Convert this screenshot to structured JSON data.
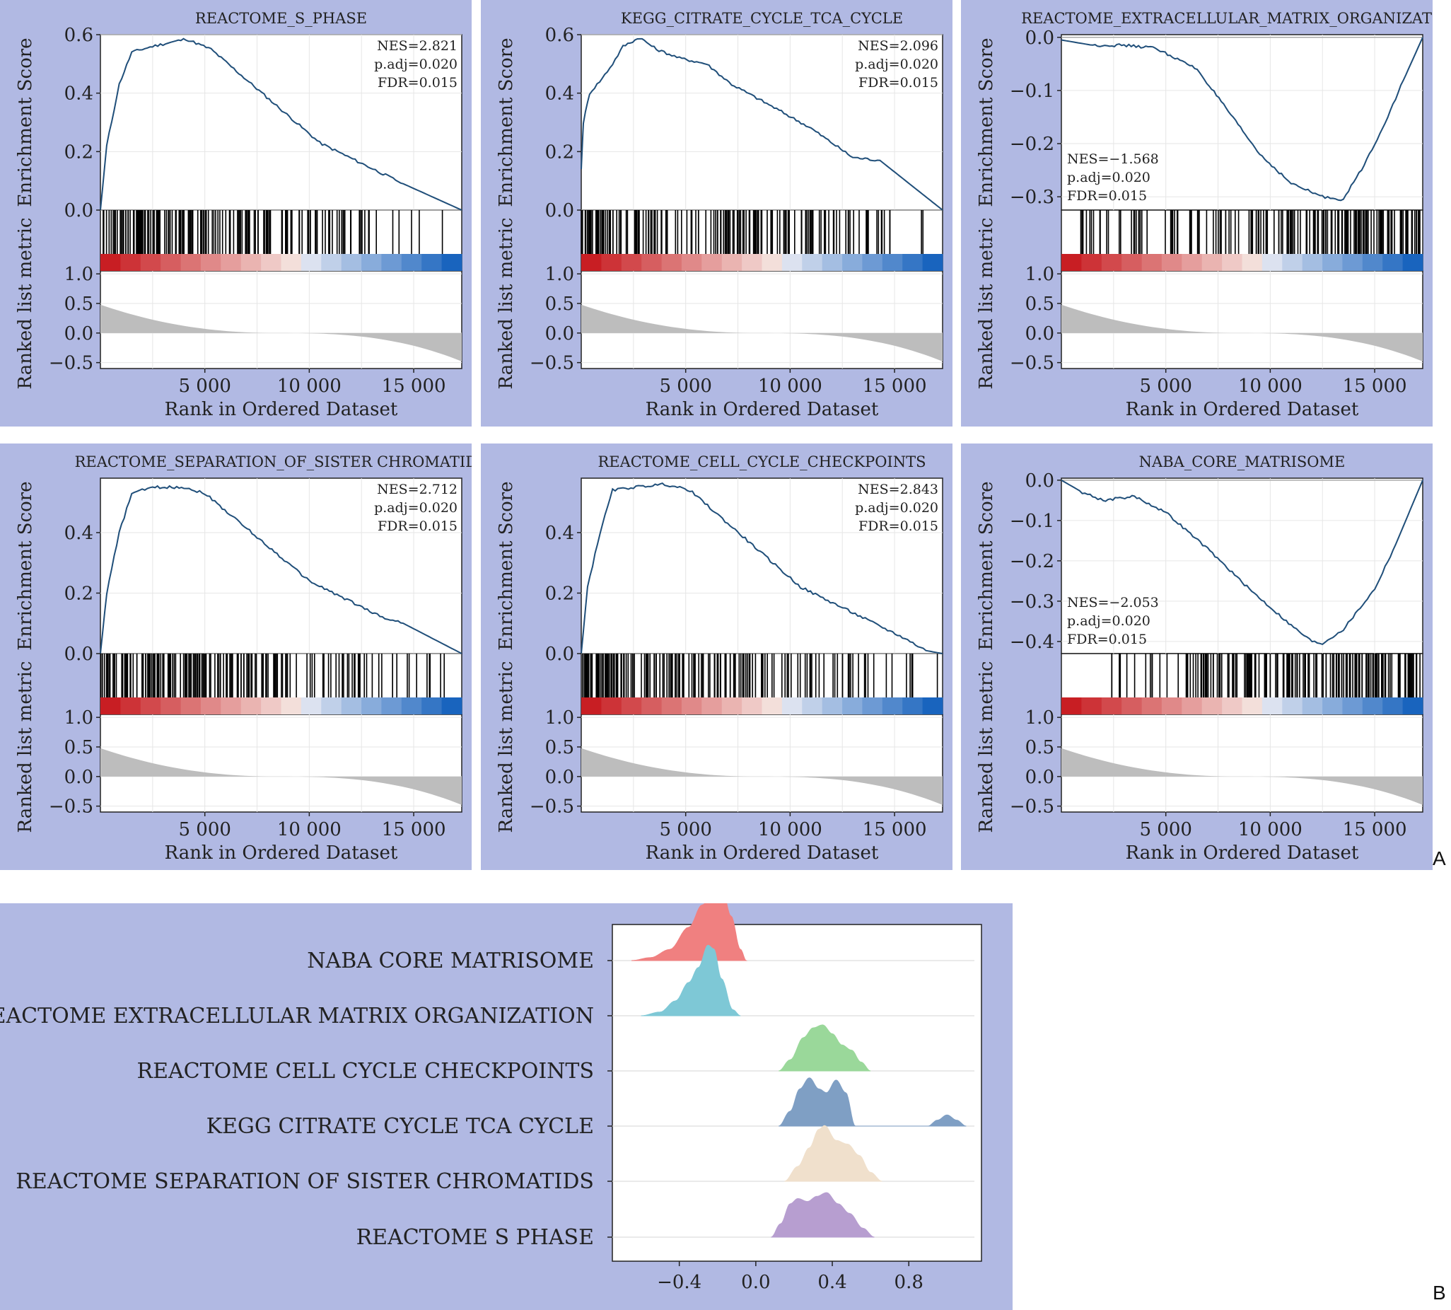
{
  "figure_labels": {
    "a": "A",
    "b": "B"
  },
  "colors": {
    "panel_bg": "#b1b9e3",
    "es_line": "#1f4e79",
    "metric_fill": "#bdbdbd",
    "heat_pos": "#c62828",
    "heat_neg": "#1565c0"
  },
  "chart_data": [
    {
      "type": "line",
      "title": "REACTOME_S_PHASE",
      "ylabel": "Enrichment Score",
      "ylabel2": "Ranked list metric",
      "xlabel": "Rank in Ordered Dataset",
      "x_ticks": [
        "5 000",
        "10 000",
        "15 000"
      ],
      "y_ticks": [
        "0.0",
        "0.2",
        "0.4",
        "0.6"
      ],
      "metric_ticks": [
        "1.0",
        "0.5",
        "0.0",
        "−0.5"
      ],
      "ylim": [
        0,
        0.6
      ],
      "xlim": [
        0,
        17300
      ],
      "stats": [
        "NES=2.821",
        "p.adj=0.020",
        "FDR=0.015"
      ],
      "stats_pos": "top-right",
      "x": [
        0,
        300,
        900,
        1500,
        2500,
        4100,
        5300,
        10500,
        14500,
        17300
      ],
      "y": [
        0,
        0.22,
        0.43,
        0.54,
        0.56,
        0.585,
        0.55,
        0.23,
        0.09,
        0
      ]
    },
    {
      "type": "line",
      "title": "KEGG_CITRATE_CYCLE_TCA_CYCLE",
      "ylabel": "Enrichment Score",
      "ylabel2": "Ranked list metric",
      "xlabel": "Rank in Ordered Dataset",
      "x_ticks": [
        "5 000",
        "10 000",
        "15 000"
      ],
      "y_ticks": [
        "0.0",
        "0.2",
        "0.4",
        "0.6"
      ],
      "metric_ticks": [
        "1.0",
        "0.5",
        "0.0",
        "−0.5"
      ],
      "ylim": [
        0,
        0.6
      ],
      "xlim": [
        0,
        17300
      ],
      "stats": [
        "NES=2.096",
        "p.adj=0.020",
        "FDR=0.015"
      ],
      "stats_pos": "top-right",
      "x": [
        0,
        100,
        400,
        1000,
        1500,
        2000,
        2800,
        3600,
        4700,
        6000,
        7200,
        9000,
        11000,
        13000,
        14300,
        17300
      ],
      "y": [
        0.14,
        0.3,
        0.4,
        0.45,
        0.5,
        0.56,
        0.59,
        0.55,
        0.52,
        0.5,
        0.43,
        0.36,
        0.28,
        0.18,
        0.17,
        0
      ]
    },
    {
      "type": "line",
      "title": "REACTOME_EXTRACELLULAR_MATRIX_ORGANIZATION",
      "ylabel": "Enrichment Score",
      "ylabel2": "Ranked list metric",
      "xlabel": "Rank in Ordered Dataset",
      "x_ticks": [
        "5 000",
        "10 000",
        "15 000"
      ],
      "y_ticks": [
        "0.0",
        "−0.1",
        "−0.2",
        "−0.3"
      ],
      "metric_ticks": [
        "1.0",
        "0.5",
        "0.0",
        "−0.5"
      ],
      "ylim": [
        -0.325,
        0.005
      ],
      "xlim": [
        0,
        17300
      ],
      "stats": [
        "NES=−1.568",
        "p.adj=0.020",
        "FDR=0.015"
      ],
      "stats_pos": "bottom-left",
      "x": [
        0,
        1500,
        3000,
        4500,
        6500,
        8000,
        9500,
        11000,
        12500,
        13500,
        14500,
        15500,
        16500,
        17300
      ],
      "y": [
        -0.005,
        -0.015,
        -0.015,
        -0.02,
        -0.06,
        -0.14,
        -0.22,
        -0.275,
        -0.3,
        -0.305,
        -0.24,
        -0.16,
        -0.07,
        0
      ]
    },
    {
      "type": "line",
      "title": "REACTOME_SEPARATION_OF_SISTER CHROMATIDS",
      "ylabel": "Enrichment Score",
      "ylabel2": "Ranked list metric",
      "xlabel": "Rank in Ordered Dataset",
      "x_ticks": [
        "5 000",
        "10 000",
        "15 000"
      ],
      "y_ticks": [
        "0.0",
        "0.2",
        "0.4"
      ],
      "metric_ticks": [
        "1.0",
        "0.5",
        "0.0",
        "−0.5"
      ],
      "ylim": [
        0,
        0.58
      ],
      "xlim": [
        0,
        17300
      ],
      "stats": [
        "NES=2.712",
        "p.adj=0.020",
        "FDR=0.015"
      ],
      "stats_pos": "top-right",
      "x": [
        0,
        300,
        900,
        1500,
        2500,
        4000,
        5000,
        10000,
        13500,
        14500,
        17300
      ],
      "y": [
        0,
        0.2,
        0.4,
        0.53,
        0.55,
        0.55,
        0.53,
        0.24,
        0.12,
        0.1,
        0
      ]
    },
    {
      "type": "line",
      "title": "REACTOME_CELL_CYCLE_CHECKPOINTS",
      "ylabel": "Enrichment Score",
      "ylabel2": "Ranked list metric",
      "xlabel": "Rank in Ordered Dataset",
      "x_ticks": [
        "5 000",
        "10 000",
        "15 000"
      ],
      "y_ticks": [
        "0.0",
        "0.2",
        "0.4"
      ],
      "metric_ticks": [
        "1.0",
        "0.5",
        "0.0",
        "−0.5"
      ],
      "ylim": [
        0,
        0.58
      ],
      "xlim": [
        0,
        17300
      ],
      "stats": [
        "NES=2.843",
        "p.adj=0.020",
        "FDR=0.015"
      ],
      "stats_pos": "top-right",
      "x": [
        0,
        300,
        900,
        1500,
        2500,
        4000,
        5200,
        10500,
        15500,
        16500,
        17300
      ],
      "y": [
        0,
        0.22,
        0.4,
        0.54,
        0.55,
        0.56,
        0.54,
        0.22,
        0.05,
        0.01,
        0
      ]
    },
    {
      "type": "line",
      "title": "NABA_CORE_MATRISOME",
      "ylabel": "Enrichment Score",
      "ylabel2": "Ranked list metric",
      "xlabel": "Rank in Ordered Dataset",
      "x_ticks": [
        "5 000",
        "10 000",
        "15 000"
      ],
      "y_ticks": [
        "0.0",
        "−0.1",
        "−0.2",
        "−0.3",
        "−0.4"
      ],
      "metric_ticks": [
        "1.0",
        "0.5",
        "0.0",
        "−0.5"
      ],
      "ylim": [
        -0.43,
        0.005
      ],
      "xlim": [
        0,
        17300
      ],
      "stats": [
        "NES=−2.053",
        "p.adj=0.020",
        "FDR=0.015"
      ],
      "stats_pos": "bottom-left",
      "x": [
        0,
        1000,
        2000,
        3500,
        5000,
        7000,
        9000,
        11000,
        12000,
        12500,
        13500,
        15000,
        16000,
        17300
      ],
      "y": [
        0,
        -0.03,
        -0.05,
        -0.04,
        -0.08,
        -0.17,
        -0.27,
        -0.36,
        -0.4,
        -0.405,
        -0.37,
        -0.27,
        -0.16,
        0
      ]
    },
    {
      "type": "area",
      "categories": [
        "NABA CORE MATRISOME",
        "REACTOME EXTRACELLULAR MATRIX ORGANIZATION",
        "REACTOME CELL CYCLE CHECKPOINTS",
        "KEGG CITRATE CYCLE TCA CYCLE",
        "REACTOME SEPARATION OF SISTER CHROMATIDS",
        "REACTOME S PHASE"
      ],
      "x_ticks": [
        "−0.4",
        "0.0",
        "0.4",
        "0.8"
      ],
      "xlim": [
        -0.75,
        1.18
      ],
      "series": [
        {
          "color": "#f08080",
          "x": [
            -0.65,
            -0.55,
            -0.45,
            -0.35,
            -0.28,
            -0.22,
            -0.17,
            -0.13,
            -0.08,
            -0.05
          ],
          "y": [
            0,
            0.04,
            0.15,
            0.45,
            0.75,
            0.92,
            0.9,
            0.6,
            0.15,
            0
          ]
        },
        {
          "color": "#7ec8d6",
          "x": [
            -0.6,
            -0.5,
            -0.42,
            -0.35,
            -0.3,
            -0.25,
            -0.22,
            -0.18,
            -0.12,
            -0.08
          ],
          "y": [
            0,
            0.05,
            0.2,
            0.45,
            0.65,
            0.95,
            0.9,
            0.5,
            0.08,
            0
          ]
        },
        {
          "color": "#9ad89a",
          "x": [
            0.12,
            0.18,
            0.25,
            0.3,
            0.35,
            0.4,
            0.45,
            0.5,
            0.55,
            0.6
          ],
          "y": [
            0,
            0.15,
            0.45,
            0.58,
            0.62,
            0.5,
            0.35,
            0.28,
            0.12,
            0
          ]
        },
        {
          "color": "#7f9fc4",
          "x": [
            0.12,
            0.18,
            0.23,
            0.28,
            0.33,
            0.37,
            0.42,
            0.47,
            0.52,
            0.9,
            0.95,
            1.0,
            1.05,
            1.1
          ],
          "y": [
            0,
            0.2,
            0.5,
            0.65,
            0.5,
            0.45,
            0.62,
            0.45,
            0,
            0,
            0.08,
            0.15,
            0.08,
            0
          ]
        },
        {
          "color": "#f0e0cc",
          "x": [
            0.15,
            0.22,
            0.28,
            0.33,
            0.36,
            0.42,
            0.48,
            0.54,
            0.6,
            0.66
          ],
          "y": [
            0,
            0.2,
            0.45,
            0.7,
            0.75,
            0.55,
            0.5,
            0.35,
            0.12,
            0
          ]
        },
        {
          "color": "#b79ed0",
          "x": [
            0.08,
            0.13,
            0.18,
            0.22,
            0.27,
            0.32,
            0.37,
            0.43,
            0.49,
            0.56,
            0.62
          ],
          "y": [
            0,
            0.18,
            0.45,
            0.52,
            0.48,
            0.55,
            0.6,
            0.45,
            0.32,
            0.12,
            0
          ]
        }
      ]
    }
  ]
}
